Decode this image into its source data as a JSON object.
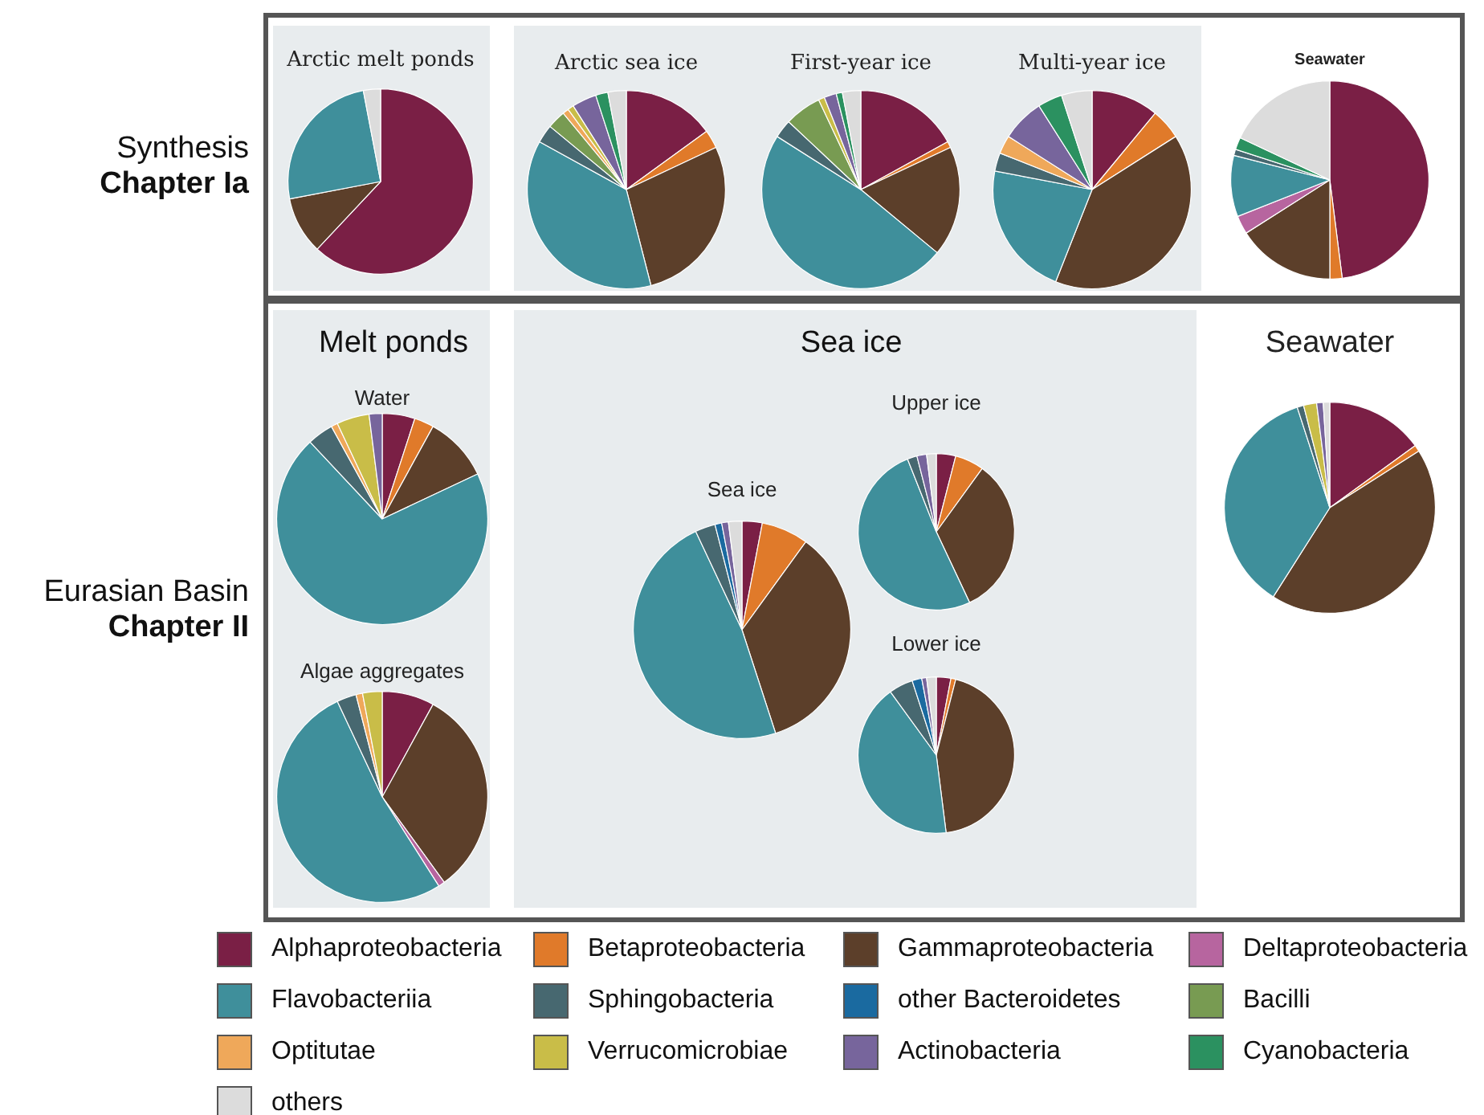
{
  "chart_data": {
    "type": "pie",
    "legend": "bottom",
    "annotations": [
      "Synthesis",
      "Chapter Ia",
      "Eurasian Basin",
      "Chapter II",
      "Melt ponds",
      "Sea ice"
    ],
    "categories": [
      "Alphaproteobacteria",
      "Betaproteobacteria",
      "Gammaproteobacteria",
      "Deltaproteobacteria",
      "Flavobacteriia",
      "Sphingobacteria",
      "other Bacteroidetes",
      "Bacilli",
      "Optitutae",
      "Verrucomicrobiae",
      "Actinobacteria",
      "Cyanobacteria",
      "others"
    ],
    "colors": [
      "#7a1f45",
      "#e07a2a",
      "#5c3f2a",
      "#b7659f",
      "#3f8f9b",
      "#476870",
      "#1a6aa0",
      "#789b52",
      "#efa85a",
      "#c9bd48",
      "#77659c",
      "#2b9160",
      "#dcdcdc"
    ],
    "series": [
      {
        "name": "Arctic melt ponds",
        "values": [
          62,
          0,
          10,
          0,
          25,
          0,
          0,
          0,
          0,
          0,
          0,
          0,
          3
        ]
      },
      {
        "name": "Arctic sea ice",
        "values": [
          15,
          3,
          28,
          0,
          37,
          3,
          0,
          3,
          1,
          1,
          4,
          2,
          3
        ]
      },
      {
        "name": "First-year ice",
        "values": [
          17,
          1,
          18,
          0,
          48,
          3,
          0,
          6,
          0,
          1,
          2,
          1,
          3
        ]
      },
      {
        "name": "Multi-year ice",
        "values": [
          11,
          5,
          40,
          0,
          22,
          3,
          0,
          0,
          3,
          0,
          7,
          4,
          5
        ]
      },
      {
        "name": "Seawater",
        "values": [
          48,
          2,
          16,
          3,
          10,
          1,
          0,
          0,
          0,
          0,
          0,
          2,
          18
        ]
      },
      {
        "name": "Water",
        "values": [
          5,
          3,
          10,
          0,
          70,
          4,
          0,
          0,
          1,
          5,
          2,
          0,
          0
        ]
      },
      {
        "name": "Algae aggregates",
        "values": [
          8,
          0,
          32,
          1,
          52,
          3,
          0,
          0,
          1,
          3,
          0,
          0,
          0
        ]
      },
      {
        "name": "Sea ice",
        "values": [
          3,
          7,
          35,
          0,
          48,
          3,
          1,
          0,
          0,
          0,
          1,
          0,
          2
        ]
      },
      {
        "name": "Upper ice",
        "values": [
          4,
          6,
          33,
          0,
          51,
          2,
          0,
          0,
          0,
          0,
          2,
          0,
          2
        ]
      },
      {
        "name": "Lower ice",
        "values": [
          3,
          1,
          44,
          0,
          42,
          5,
          2,
          0,
          0,
          0,
          1,
          0,
          2
        ]
      },
      {
        "name": "Seawater",
        "values": [
          15,
          1,
          43,
          0,
          36,
          1,
          0,
          0,
          0,
          2,
          1,
          0,
          1
        ]
      }
    ]
  }
}
